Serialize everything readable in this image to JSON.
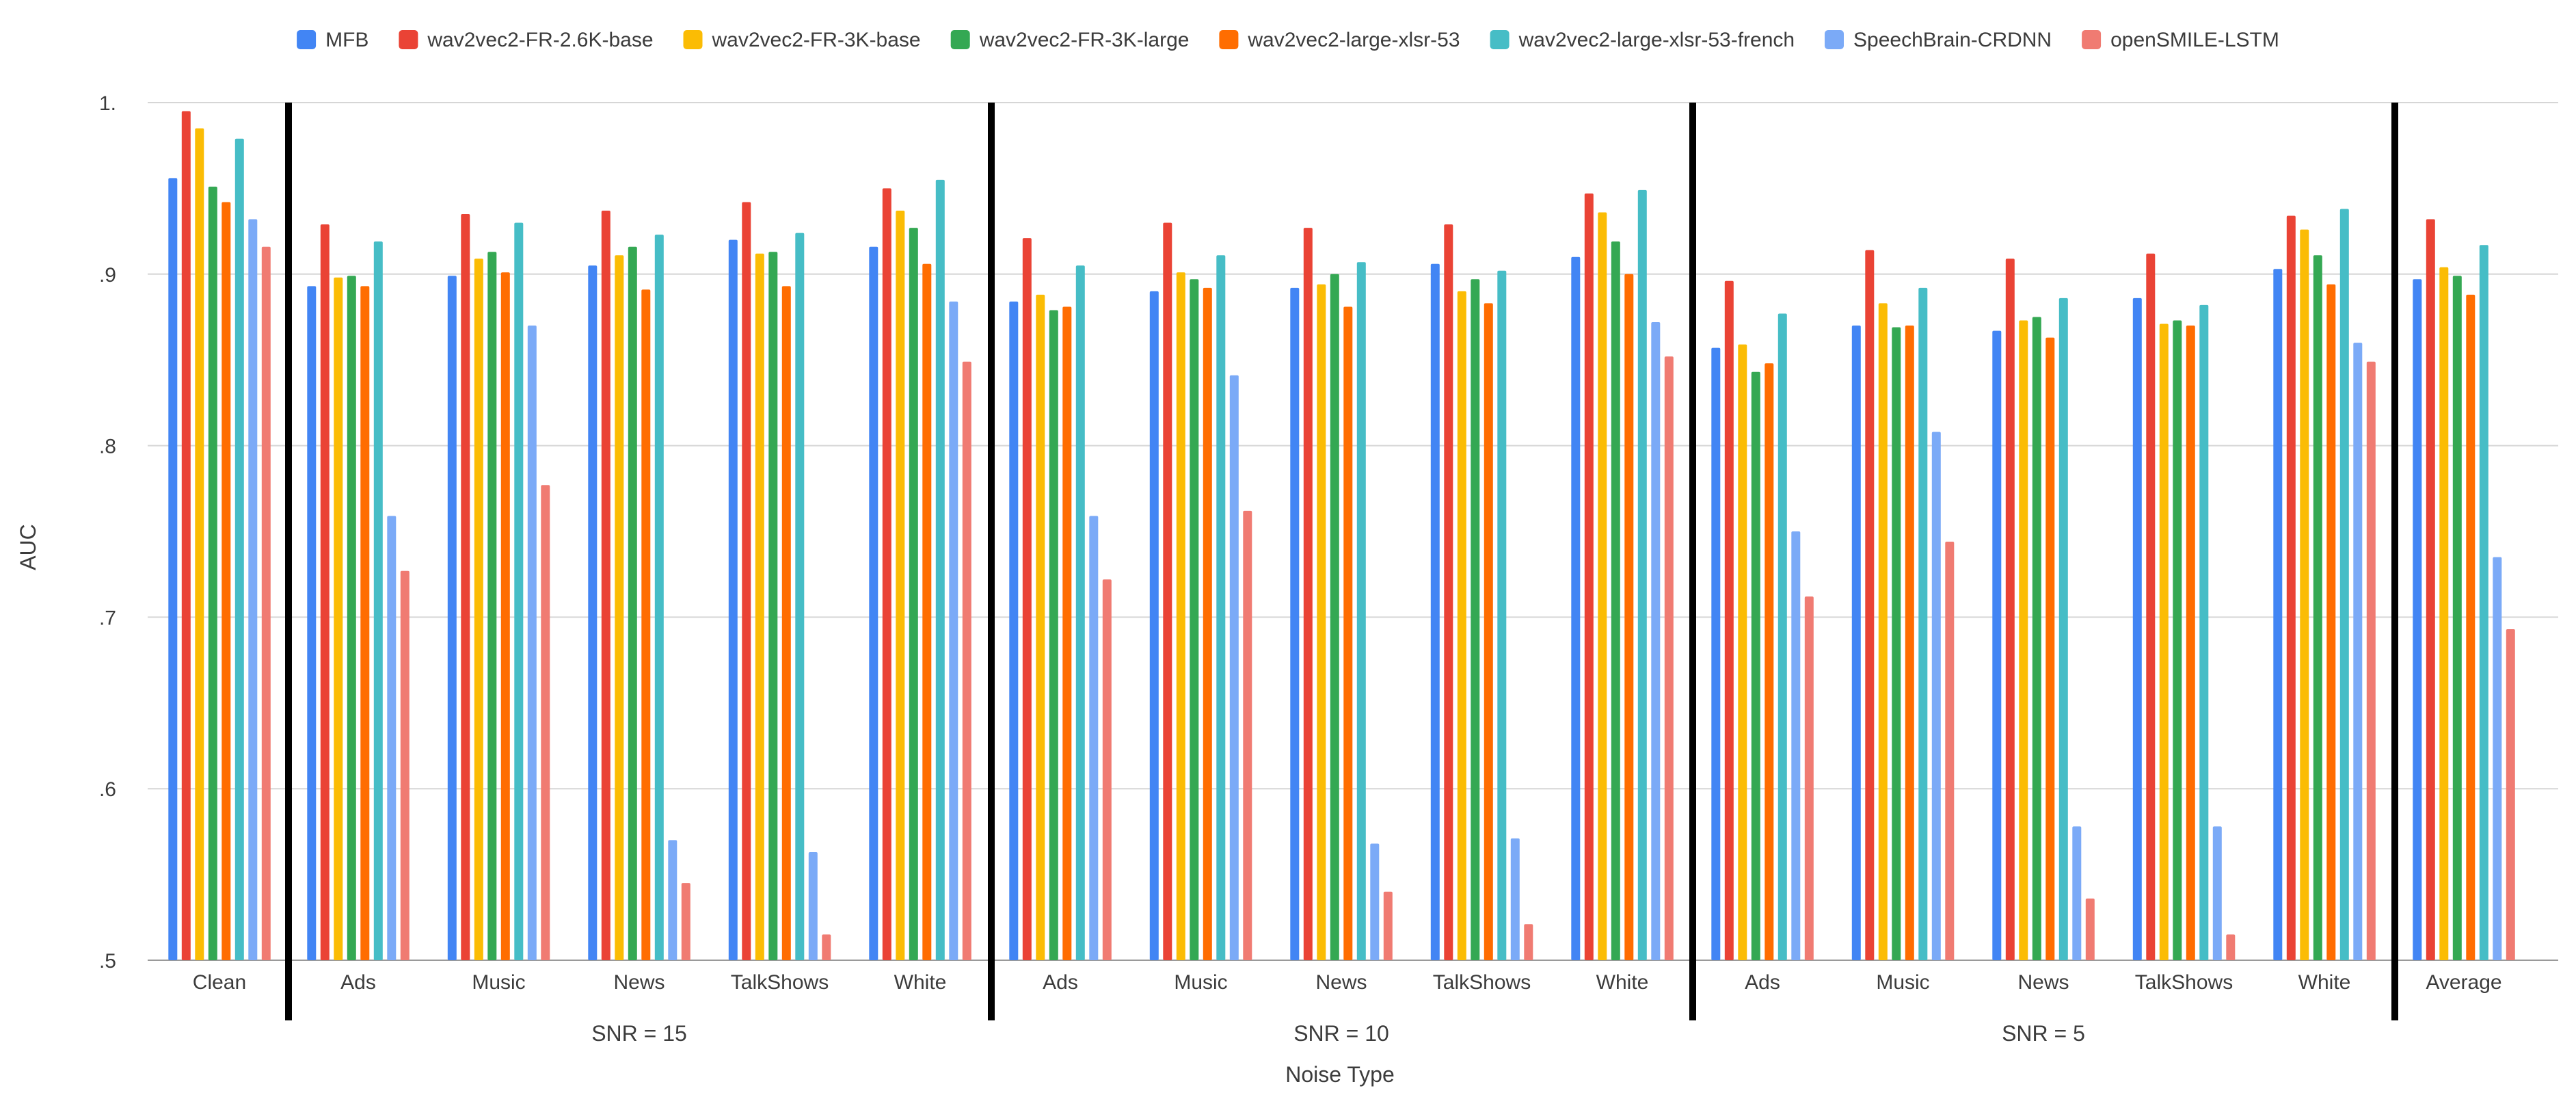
{
  "chart_data": {
    "type": "bar",
    "title": "",
    "xlabel": "Noise Type",
    "ylabel": "AUC",
    "ylim": [
      0.5,
      1.0
    ],
    "yticks": [
      0.5,
      0.6,
      0.7,
      0.8,
      0.9,
      1.0
    ],
    "ytick_labels": [
      ".5",
      ".6",
      ".7",
      ".8",
      ".9",
      "1."
    ],
    "grid": true,
    "legend_position": "top",
    "categories": [
      "Clean",
      "Ads",
      "Music",
      "News",
      "TalkShows",
      "White",
      "Ads",
      "Music",
      "News",
      "TalkShows",
      "White",
      "Ads",
      "Music",
      "News",
      "TalkShows",
      "White",
      "Average"
    ],
    "groups": [
      {
        "label": "",
        "categories": [
          "Clean"
        ]
      },
      {
        "label": "SNR = 15",
        "categories": [
          "Ads",
          "Music",
          "News",
          "TalkShows",
          "White"
        ]
      },
      {
        "label": "SNR = 10",
        "categories": [
          "Ads",
          "Music",
          "News",
          "TalkShows",
          "White"
        ]
      },
      {
        "label": "SNR = 5",
        "categories": [
          "Ads",
          "Music",
          "News",
          "TalkShows",
          "White"
        ]
      },
      {
        "label": "",
        "categories": [
          "Average"
        ]
      }
    ],
    "series": [
      {
        "name": "MFB",
        "color": "#4285f4",
        "values": [
          0.956,
          0.893,
          0.899,
          0.905,
          0.92,
          0.916,
          0.884,
          0.89,
          0.892,
          0.906,
          0.91,
          0.857,
          0.87,
          0.867,
          0.886,
          0.903,
          0.897
        ]
      },
      {
        "name": "wav2vec2-FR-2.6K-base",
        "color": "#ea4335",
        "values": [
          0.995,
          0.929,
          0.935,
          0.937,
          0.942,
          0.95,
          0.921,
          0.93,
          0.927,
          0.929,
          0.947,
          0.896,
          0.914,
          0.909,
          0.912,
          0.934,
          0.932
        ]
      },
      {
        "name": "wav2vec2-FR-3K-base",
        "color": "#fbbc04",
        "values": [
          0.985,
          0.898,
          0.909,
          0.911,
          0.912,
          0.937,
          0.888,
          0.901,
          0.894,
          0.89,
          0.936,
          0.859,
          0.883,
          0.873,
          0.871,
          0.926,
          0.904
        ]
      },
      {
        "name": "wav2vec2-FR-3K-large",
        "color": "#34a853",
        "values": [
          0.951,
          0.899,
          0.913,
          0.916,
          0.913,
          0.927,
          0.879,
          0.897,
          0.9,
          0.897,
          0.919,
          0.843,
          0.869,
          0.875,
          0.873,
          0.911,
          0.899
        ]
      },
      {
        "name": "wav2vec2-large-xlsr-53",
        "color": "#ff6d01",
        "values": [
          0.942,
          0.893,
          0.901,
          0.891,
          0.893,
          0.906,
          0.881,
          0.892,
          0.881,
          0.883,
          0.9,
          0.848,
          0.87,
          0.863,
          0.87,
          0.894,
          0.888
        ]
      },
      {
        "name": "wav2vec2-large-xlsr-53-french",
        "color": "#46bdc6",
        "values": [
          0.979,
          0.919,
          0.93,
          0.923,
          0.924,
          0.955,
          0.905,
          0.911,
          0.907,
          0.902,
          0.949,
          0.877,
          0.892,
          0.886,
          0.882,
          0.938,
          0.917
        ]
      },
      {
        "name": "SpeechBrain-CRDNN",
        "color": "#7baaf7",
        "values": [
          0.932,
          0.759,
          0.87,
          0.57,
          0.563,
          0.884,
          0.759,
          0.841,
          0.568,
          0.571,
          0.872,
          0.75,
          0.808,
          0.578,
          0.578,
          0.86,
          0.735
        ]
      },
      {
        "name": "openSMILE-LSTM",
        "color": "#f07b72",
        "values": [
          0.916,
          0.727,
          0.777,
          0.545,
          0.515,
          0.849,
          0.722,
          0.762,
          0.54,
          0.521,
          0.852,
          0.712,
          0.744,
          0.536,
          0.515,
          0.849,
          0.693
        ]
      }
    ]
  }
}
